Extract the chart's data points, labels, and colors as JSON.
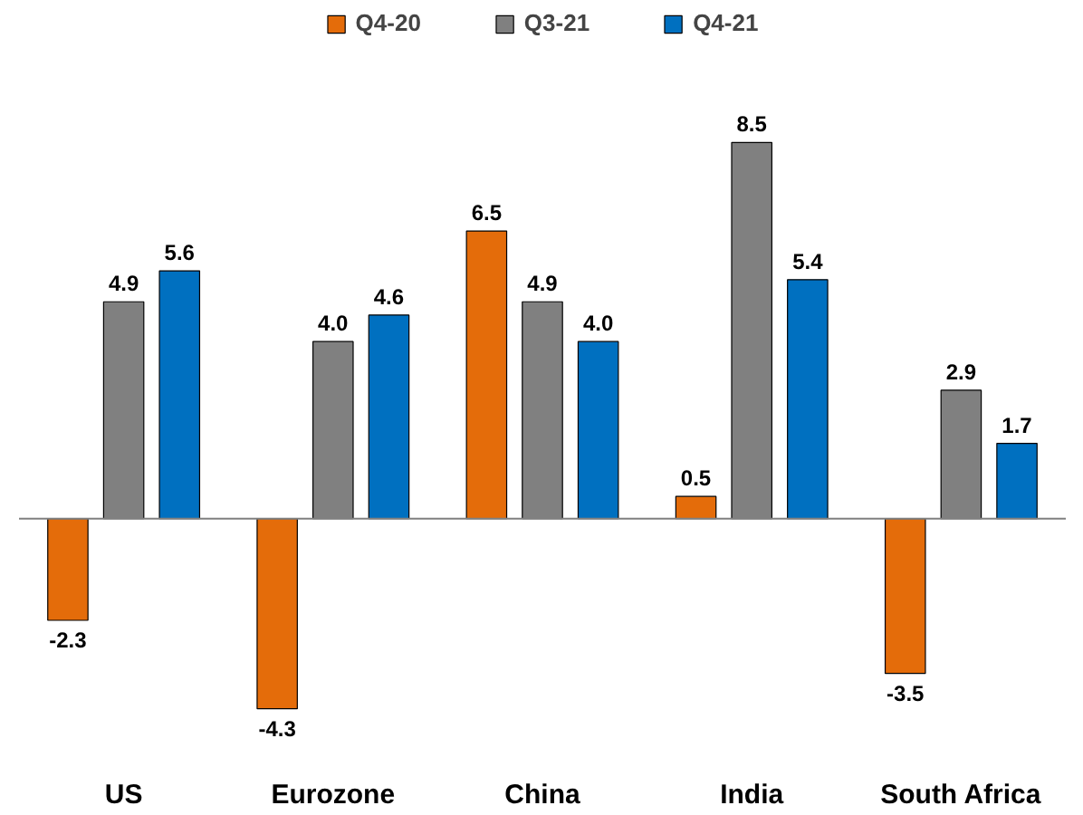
{
  "chart_data": {
    "type": "bar",
    "categories": [
      "US",
      "Eurozone",
      "China",
      "India",
      "South Africa"
    ],
    "series": [
      {
        "name": "Q4-20",
        "color": "#e46c0a",
        "values": [
          -2.3,
          -4.3,
          6.5,
          0.5,
          -3.5
        ],
        "value_labels": [
          "-2.3",
          "-4.3",
          "6.5",
          "0.5",
          "-3.5"
        ]
      },
      {
        "name": "Q3-21",
        "color": "#808080",
        "values": [
          4.9,
          4.0,
          4.9,
          8.5,
          2.9
        ],
        "value_labels": [
          "4.9",
          "4.0",
          "4.9",
          "8.5",
          "2.9"
        ]
      },
      {
        "name": "Q4-21",
        "color": "#0070c0",
        "values": [
          5.6,
          4.6,
          4.0,
          5.4,
          1.7
        ],
        "value_labels": [
          "5.6",
          "4.6",
          "4.0",
          "5.4",
          "1.7"
        ]
      }
    ],
    "legend": "top",
    "grid": false
  }
}
